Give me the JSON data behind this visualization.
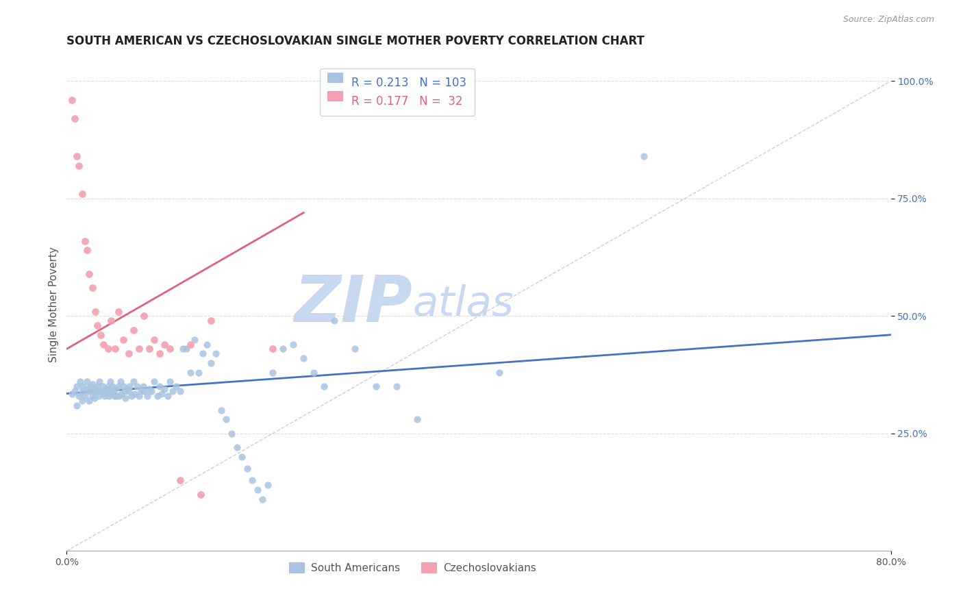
{
  "title": "SOUTH AMERICAN VS CZECHOSLOVAKIAN SINGLE MOTHER POVERTY CORRELATION CHART",
  "source": "Source: ZipAtlas.com",
  "ylabel": "Single Mother Poverty",
  "ytick_vals": [
    0.25,
    0.5,
    0.75,
    1.0
  ],
  "legend_blue_R": "R = 0.213",
  "legend_blue_N": "N = 103",
  "legend_pink_R": "R = 0.177",
  "legend_pink_N": "N =  32",
  "legend_label_blue": "South Americans",
  "legend_label_pink": "Czechoslovakians",
  "blue_color": "#A8C4E0",
  "pink_color": "#F4A0B0",
  "blue_line_color": "#4472C4",
  "pink_line_color": "#E06080",
  "diag_line_color": "#BBBBBB",
  "watermark_zip": "ZIP",
  "watermark_atlas": "atlas",
  "watermark_color": "#C8D8F0",
  "watermark_color2": "#C8D8F0",
  "xmin": 0.0,
  "xmax": 0.8,
  "ymin": 0.0,
  "ymax": 1.05,
  "blue_scatter_x": [
    0.005,
    0.008,
    0.01,
    0.01,
    0.012,
    0.013,
    0.015,
    0.015,
    0.016,
    0.018,
    0.02,
    0.02,
    0.022,
    0.022,
    0.023,
    0.025,
    0.025,
    0.026,
    0.027,
    0.028,
    0.03,
    0.03,
    0.031,
    0.032,
    0.033,
    0.035,
    0.035,
    0.036,
    0.037,
    0.038,
    0.04,
    0.04,
    0.041,
    0.042,
    0.043,
    0.044,
    0.045,
    0.046,
    0.047,
    0.048,
    0.05,
    0.051,
    0.052,
    0.053,
    0.055,
    0.056,
    0.057,
    0.058,
    0.06,
    0.061,
    0.063,
    0.065,
    0.066,
    0.068,
    0.07,
    0.072,
    0.074,
    0.075,
    0.078,
    0.08,
    0.082,
    0.085,
    0.088,
    0.09,
    0.092,
    0.095,
    0.098,
    0.1,
    0.103,
    0.106,
    0.11,
    0.113,
    0.116,
    0.12,
    0.124,
    0.128,
    0.132,
    0.136,
    0.14,
    0.145,
    0.15,
    0.155,
    0.16,
    0.165,
    0.17,
    0.175,
    0.18,
    0.185,
    0.19,
    0.195,
    0.2,
    0.21,
    0.22,
    0.23,
    0.24,
    0.25,
    0.26,
    0.28,
    0.3,
    0.32,
    0.34,
    0.42,
    0.56
  ],
  "blue_scatter_y": [
    0.335,
    0.34,
    0.35,
    0.31,
    0.33,
    0.36,
    0.34,
    0.32,
    0.35,
    0.33,
    0.345,
    0.36,
    0.34,
    0.32,
    0.35,
    0.33,
    0.355,
    0.34,
    0.325,
    0.345,
    0.34,
    0.35,
    0.33,
    0.36,
    0.34,
    0.335,
    0.35,
    0.34,
    0.33,
    0.345,
    0.34,
    0.35,
    0.33,
    0.36,
    0.335,
    0.35,
    0.34,
    0.33,
    0.345,
    0.33,
    0.35,
    0.33,
    0.36,
    0.335,
    0.35,
    0.34,
    0.325,
    0.345,
    0.34,
    0.35,
    0.33,
    0.36,
    0.335,
    0.35,
    0.33,
    0.34,
    0.35,
    0.34,
    0.33,
    0.345,
    0.34,
    0.36,
    0.33,
    0.35,
    0.335,
    0.345,
    0.33,
    0.36,
    0.34,
    0.35,
    0.34,
    0.43,
    0.43,
    0.38,
    0.45,
    0.38,
    0.42,
    0.44,
    0.4,
    0.42,
    0.3,
    0.28,
    0.25,
    0.22,
    0.2,
    0.175,
    0.15,
    0.13,
    0.11,
    0.14,
    0.38,
    0.43,
    0.44,
    0.41,
    0.38,
    0.35,
    0.49,
    0.43,
    0.35,
    0.35,
    0.28,
    0.38,
    0.84
  ],
  "pink_scatter_x": [
    0.005,
    0.008,
    0.01,
    0.012,
    0.015,
    0.018,
    0.02,
    0.022,
    0.025,
    0.028,
    0.03,
    0.033,
    0.036,
    0.04,
    0.043,
    0.047,
    0.05,
    0.055,
    0.06,
    0.065,
    0.07,
    0.075,
    0.08,
    0.085,
    0.09,
    0.095,
    0.1,
    0.11,
    0.12,
    0.13,
    0.14,
    0.2
  ],
  "pink_scatter_y": [
    0.96,
    0.92,
    0.84,
    0.82,
    0.76,
    0.66,
    0.64,
    0.59,
    0.56,
    0.51,
    0.48,
    0.46,
    0.44,
    0.43,
    0.49,
    0.43,
    0.51,
    0.45,
    0.42,
    0.47,
    0.43,
    0.5,
    0.43,
    0.45,
    0.42,
    0.44,
    0.43,
    0.15,
    0.44,
    0.12,
    0.49,
    0.43
  ],
  "blue_line_x": [
    0.0,
    0.8
  ],
  "blue_line_y": [
    0.335,
    0.46
  ],
  "pink_line_x": [
    0.0,
    0.23
  ],
  "pink_line_y": [
    0.43,
    0.72
  ],
  "diag_line_x": [
    0.0,
    0.8
  ],
  "diag_line_y": [
    0.0,
    1.0
  ]
}
